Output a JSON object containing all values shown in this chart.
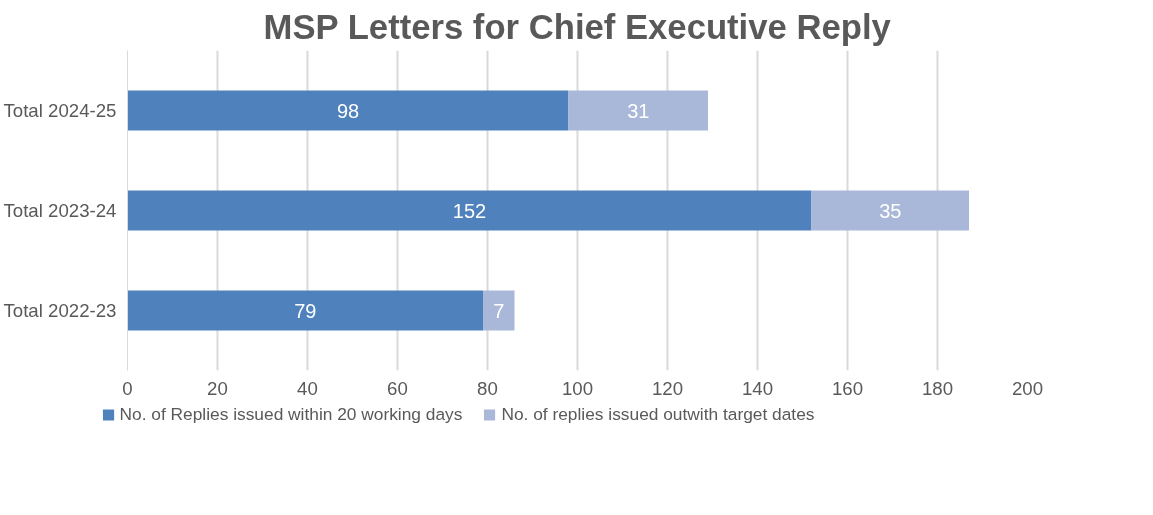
{
  "chart_data": {
    "type": "bar",
    "orientation": "horizontal",
    "stacked": true,
    "title": "MSP Letters for Chief Executive Reply",
    "categories": [
      "Total 2024-25",
      "Total 2023-24",
      "Total 2022-23"
    ],
    "series": [
      {
        "name": "No. of Replies issued within 20 working days",
        "color": "#4f81bd",
        "values": [
          98,
          152,
          79
        ]
      },
      {
        "name": "No. of replies issued outwith target dates",
        "color": "#a9b8d8",
        "values": [
          31,
          35,
          7
        ]
      }
    ],
    "xlim": [
      0,
      200
    ],
    "xticks": [
      0,
      20,
      40,
      60,
      80,
      100,
      120,
      140,
      160,
      180,
      200
    ],
    "grid": "x",
    "legend": "bottom",
    "data_labels": true
  }
}
